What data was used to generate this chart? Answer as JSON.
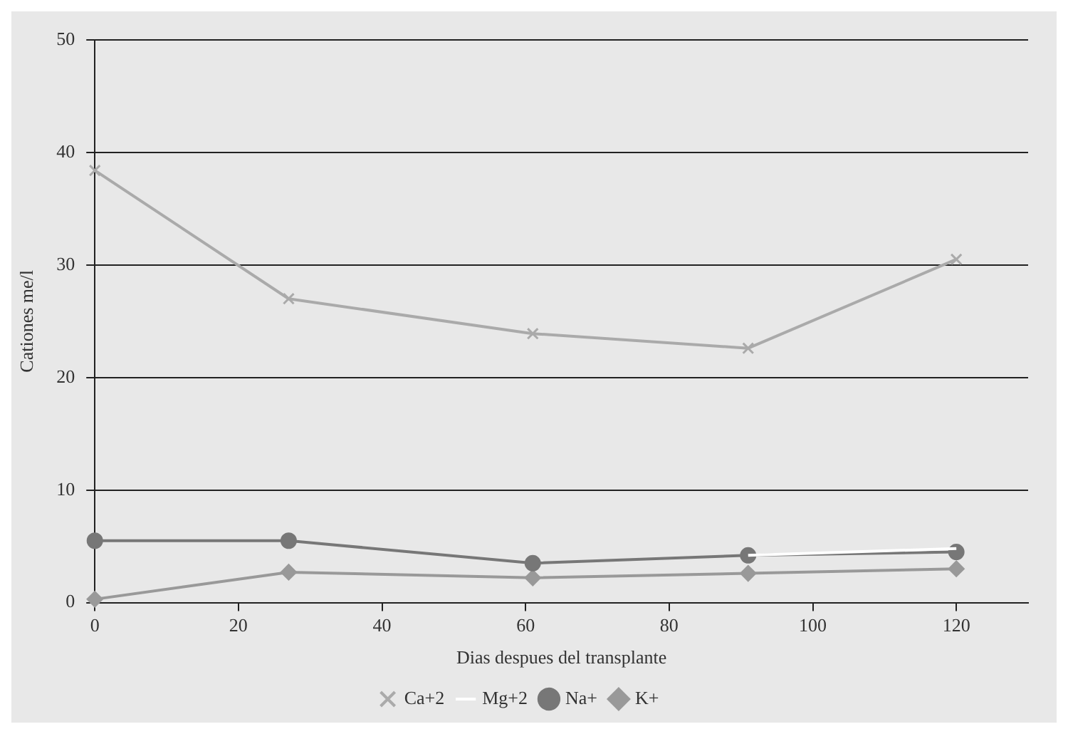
{
  "chart_data": {
    "type": "line",
    "xlabel": "Dias despues del transplante",
    "ylabel": "Cationes me/l",
    "x": [
      0,
      27,
      61,
      91,
      120
    ],
    "series": [
      {
        "name": "Ca+2",
        "color": "#aaaaaa",
        "marker": "cross",
        "values": [
          38.4,
          27,
          23.9,
          22.6,
          30.5
        ]
      },
      {
        "name": "Mg+2",
        "color": "#ffffff",
        "marker": "none",
        "values": [
          null,
          null,
          null,
          4.2,
          4.8
        ]
      },
      {
        "name": "Na+",
        "color": "#777777",
        "marker": "circle",
        "values": [
          5.5,
          5.5,
          3.5,
          4.2,
          4.5
        ]
      },
      {
        "name": "K+",
        "color": "#999999",
        "marker": "diamond",
        "values": [
          0.3,
          2.7,
          2.2,
          2.6,
          3.0
        ]
      }
    ],
    "xlim": [
      0,
      130
    ],
    "xticks": [
      0,
      20,
      40,
      60,
      80,
      100,
      120
    ],
    "ylim": [
      0,
      50
    ],
    "yticks": [
      0,
      10,
      20,
      30,
      40,
      50
    ],
    "grid": "y",
    "legend": "bottom"
  }
}
